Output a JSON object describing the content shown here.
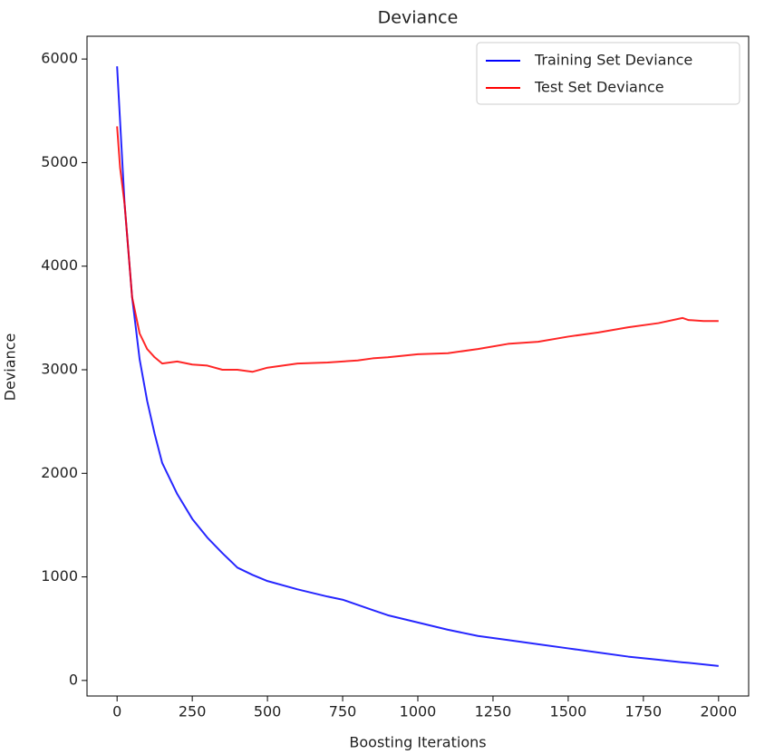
{
  "chart_data": {
    "type": "line",
    "title": "Deviance",
    "x_label": "Boosting Iterations",
    "y_label": "Deviance",
    "x": [
      0,
      10,
      25,
      50,
      75,
      100,
      125,
      150,
      200,
      250,
      300,
      350,
      400,
      450,
      500,
      600,
      700,
      750,
      800,
      850,
      900,
      1000,
      1100,
      1200,
      1300,
      1400,
      1500,
      1600,
      1700,
      1800,
      1880,
      1900,
      1950,
      2000
    ],
    "series": [
      {
        "name": "Training Set Deviance",
        "color": "#0000ff",
        "values": [
          5930,
          5400,
          4600,
          3700,
          3100,
          2700,
          2380,
          2100,
          1800,
          1560,
          1380,
          1230,
          1090,
          1020,
          960,
          880,
          810,
          780,
          730,
          680,
          630,
          560,
          490,
          430,
          390,
          350,
          310,
          270,
          230,
          200,
          175,
          170,
          155,
          140
        ]
      },
      {
        "name": "Test Set Deviance",
        "color": "#ff0000",
        "values": [
          5350,
          4950,
          4600,
          3700,
          3350,
          3200,
          3120,
          3060,
          3080,
          3050,
          3040,
          3000,
          3000,
          2980,
          3020,
          3060,
          3070,
          3080,
          3090,
          3110,
          3120,
          3150,
          3160,
          3200,
          3250,
          3270,
          3320,
          3360,
          3410,
          3450,
          3500,
          3480,
          3470,
          3470
        ]
      }
    ],
    "xlim": [
      -100,
      2100
    ],
    "ylim": [
      -150,
      6220
    ],
    "xticks": [
      0,
      250,
      500,
      750,
      1000,
      1250,
      1500,
      1750,
      2000
    ],
    "yticks": [
      0,
      1000,
      2000,
      3000,
      4000,
      5000,
      6000
    ],
    "grid": false,
    "legend": "upper right"
  }
}
